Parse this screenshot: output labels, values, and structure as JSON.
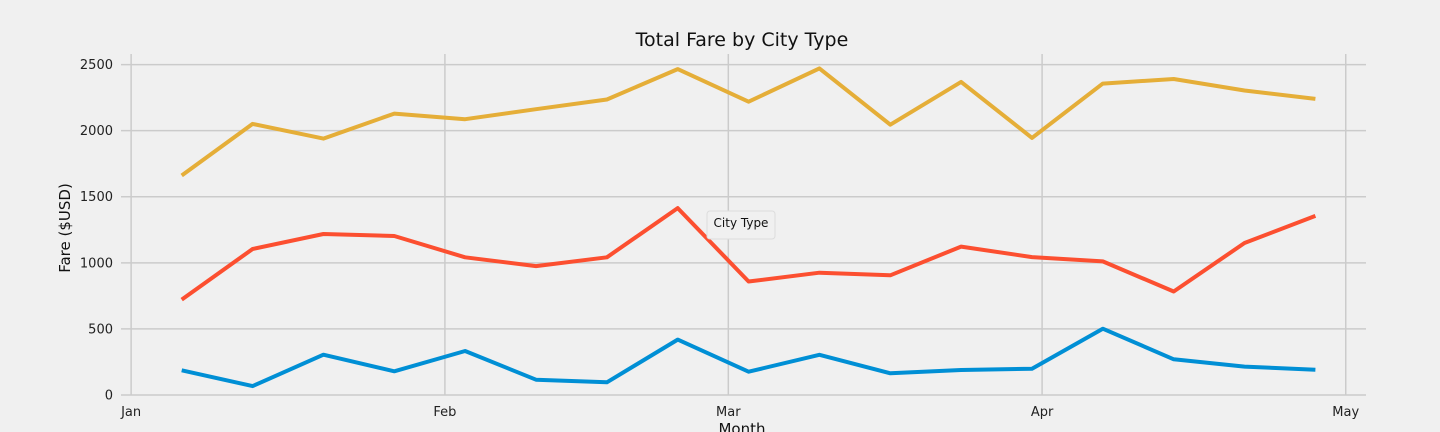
{
  "chart_data": {
    "type": "line",
    "title": "Total Fare by City Type",
    "xlabel": "Month",
    "ylabel": "Fare ($USD)",
    "x_ticks": [
      {
        "label": "Jan",
        "date": "2019-01-01"
      },
      {
        "label": "Feb",
        "date": "2019-02-01"
      },
      {
        "label": "Mar",
        "date": "2019-03-01"
      },
      {
        "label": "Apr",
        "date": "2019-04-01"
      },
      {
        "label": "May",
        "date": "2019-05-01"
      }
    ],
    "y_ticks": [
      0,
      500,
      1000,
      1500,
      2000,
      2500
    ],
    "xlim": [
      "2018-12-31",
      "2019-05-03"
    ],
    "ylim": [
      0,
      2580
    ],
    "grid": true,
    "legend": {
      "title": "City Type",
      "placement": "center"
    },
    "x": [
      "2019-01-06",
      "2019-01-13",
      "2019-01-20",
      "2019-01-27",
      "2019-02-03",
      "2019-02-10",
      "2019-02-17",
      "2019-02-24",
      "2019-03-03",
      "2019-03-10",
      "2019-03-17",
      "2019-03-24",
      "2019-03-31",
      "2019-04-07",
      "2019-04-14",
      "2019-04-21",
      "2019-04-28"
    ],
    "series": [
      {
        "color": "#008fd5",
        "values": [
          187,
          67,
          305,
          179,
          333,
          116,
          96,
          419,
          176,
          304,
          164,
          189,
          199,
          502,
          270,
          215,
          191
        ]
      },
      {
        "color": "#fc4f30",
        "values": [
          722,
          1105,
          1218,
          1203,
          1042,
          975,
          1042,
          1414,
          859,
          925,
          906,
          1123,
          1043,
          1011,
          783,
          1150,
          1355
        ]
      },
      {
        "color": "#e5ae38",
        "values": [
          1661,
          2051,
          1940,
          2129,
          2087,
          2162,
          2236,
          2466,
          2219,
          2471,
          2045,
          2369,
          1945,
          2356,
          2391,
          2304,
          2240
        ]
      }
    ]
  }
}
